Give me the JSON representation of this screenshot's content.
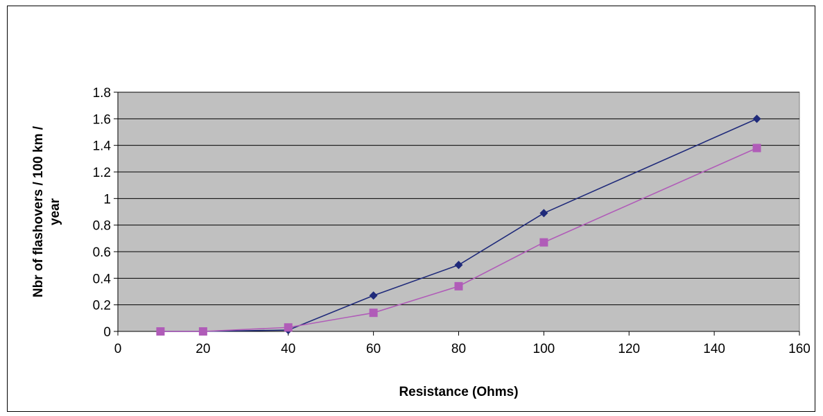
{
  "chart_data": {
    "type": "line",
    "title": "",
    "xlabel": "Resistance (Ohms)",
    "ylabel_lines": [
      "Nbr of flashovers / 100 km /",
      "year"
    ],
    "xlim": [
      0,
      160
    ],
    "ylim": [
      0,
      1.8
    ],
    "x_ticks": [
      0,
      20,
      40,
      60,
      80,
      100,
      120,
      140,
      160
    ],
    "y_ticks": [
      "0",
      "0.2",
      "0.4",
      "0.6",
      "0.8",
      "1",
      "1.2",
      "1.4",
      "1.6",
      "1.8"
    ],
    "grid": "horizontal",
    "legend": "none",
    "plot_background": "#c0c0c0",
    "series": [
      {
        "color": "#1f2a7a",
        "marker": "diamond",
        "x": [
          10,
          20,
          40,
          60,
          80,
          100,
          150
        ],
        "y": [
          0.0,
          0.0,
          0.01,
          0.27,
          0.5,
          0.89,
          1.6
        ]
      },
      {
        "color": "#b05cb8",
        "marker": "square",
        "x": [
          10,
          20,
          40,
          60,
          80,
          100,
          150
        ],
        "y": [
          0.0,
          0.0,
          0.03,
          0.14,
          0.34,
          0.67,
          1.38
        ]
      }
    ]
  }
}
